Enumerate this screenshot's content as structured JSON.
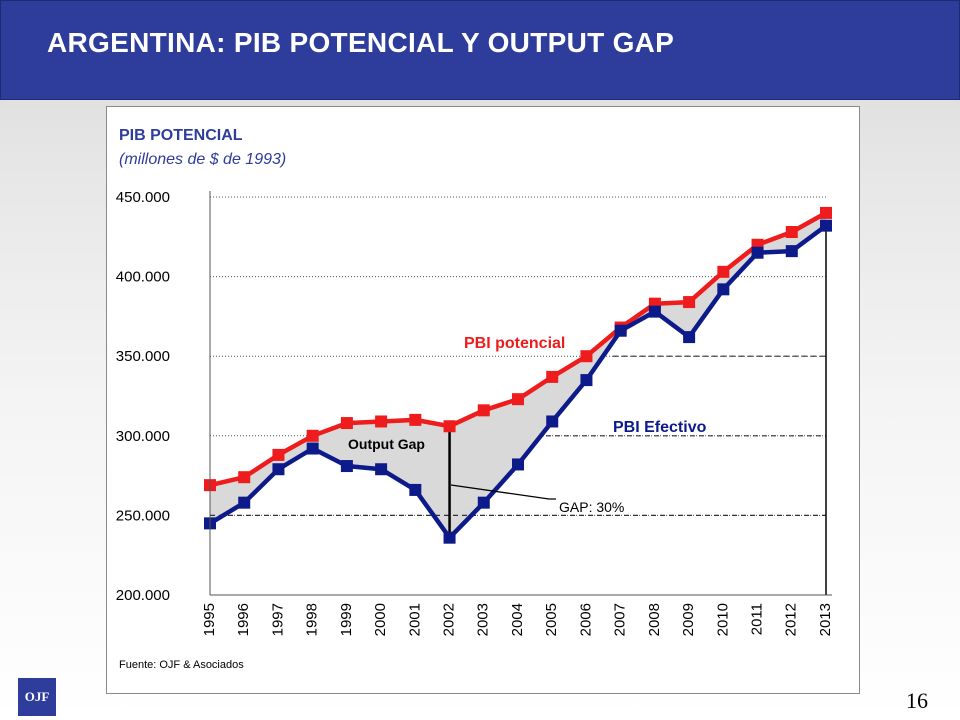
{
  "slide": {
    "title": "ARGENTINA: PIB POTENCIAL Y OUTPUT GAP",
    "page_number": "16",
    "logo_text": "OJF"
  },
  "colors": {
    "header_bg": "#2e3d9c",
    "potencial": "#ee1c1c",
    "efectivo": "#0d1a8a",
    "gap_fill": "#d9d9d9"
  },
  "chart_data": {
    "type": "line",
    "title": "PIB POTENCIAL",
    "subtitle": "(millones de $ de 1993)",
    "source": "Fuente: OJF & Asociados",
    "xlabel": "",
    "ylabel": "",
    "ylim": [
      200000,
      450000
    ],
    "y_ticks": [
      "200.000",
      "250.000",
      "300.000",
      "350.000",
      "400.000",
      "450.000"
    ],
    "y_tick_values": [
      200000,
      250000,
      300000,
      350000,
      400000,
      450000
    ],
    "grid": "horizontal dotted",
    "categories": [
      "1995",
      "1996",
      "1997",
      "1998",
      "1999",
      "2000",
      "2001",
      "2002",
      "2003",
      "2004",
      "2005",
      "2006",
      "2007",
      "2008",
      "2009",
      "2010",
      "2011",
      "2012",
      "2013"
    ],
    "series": [
      {
        "name": "PBI potencial",
        "values": [
          269000,
          274000,
          288000,
          300000,
          308000,
          309000,
          310000,
          306000,
          316000,
          323000,
          337000,
          350000,
          368000,
          383000,
          384000,
          403000,
          420000,
          428000,
          440000
        ]
      },
      {
        "name": "PBI Efectivo",
        "values": [
          245000,
          258000,
          279000,
          292000,
          281000,
          279000,
          266000,
          236000,
          258000,
          282000,
          309000,
          335000,
          366000,
          378000,
          362000,
          392000,
          415000,
          416000,
          432000
        ]
      }
    ],
    "annotations": [
      {
        "text": "Output Gap"
      },
      {
        "text": "GAP: 30%"
      }
    ]
  }
}
